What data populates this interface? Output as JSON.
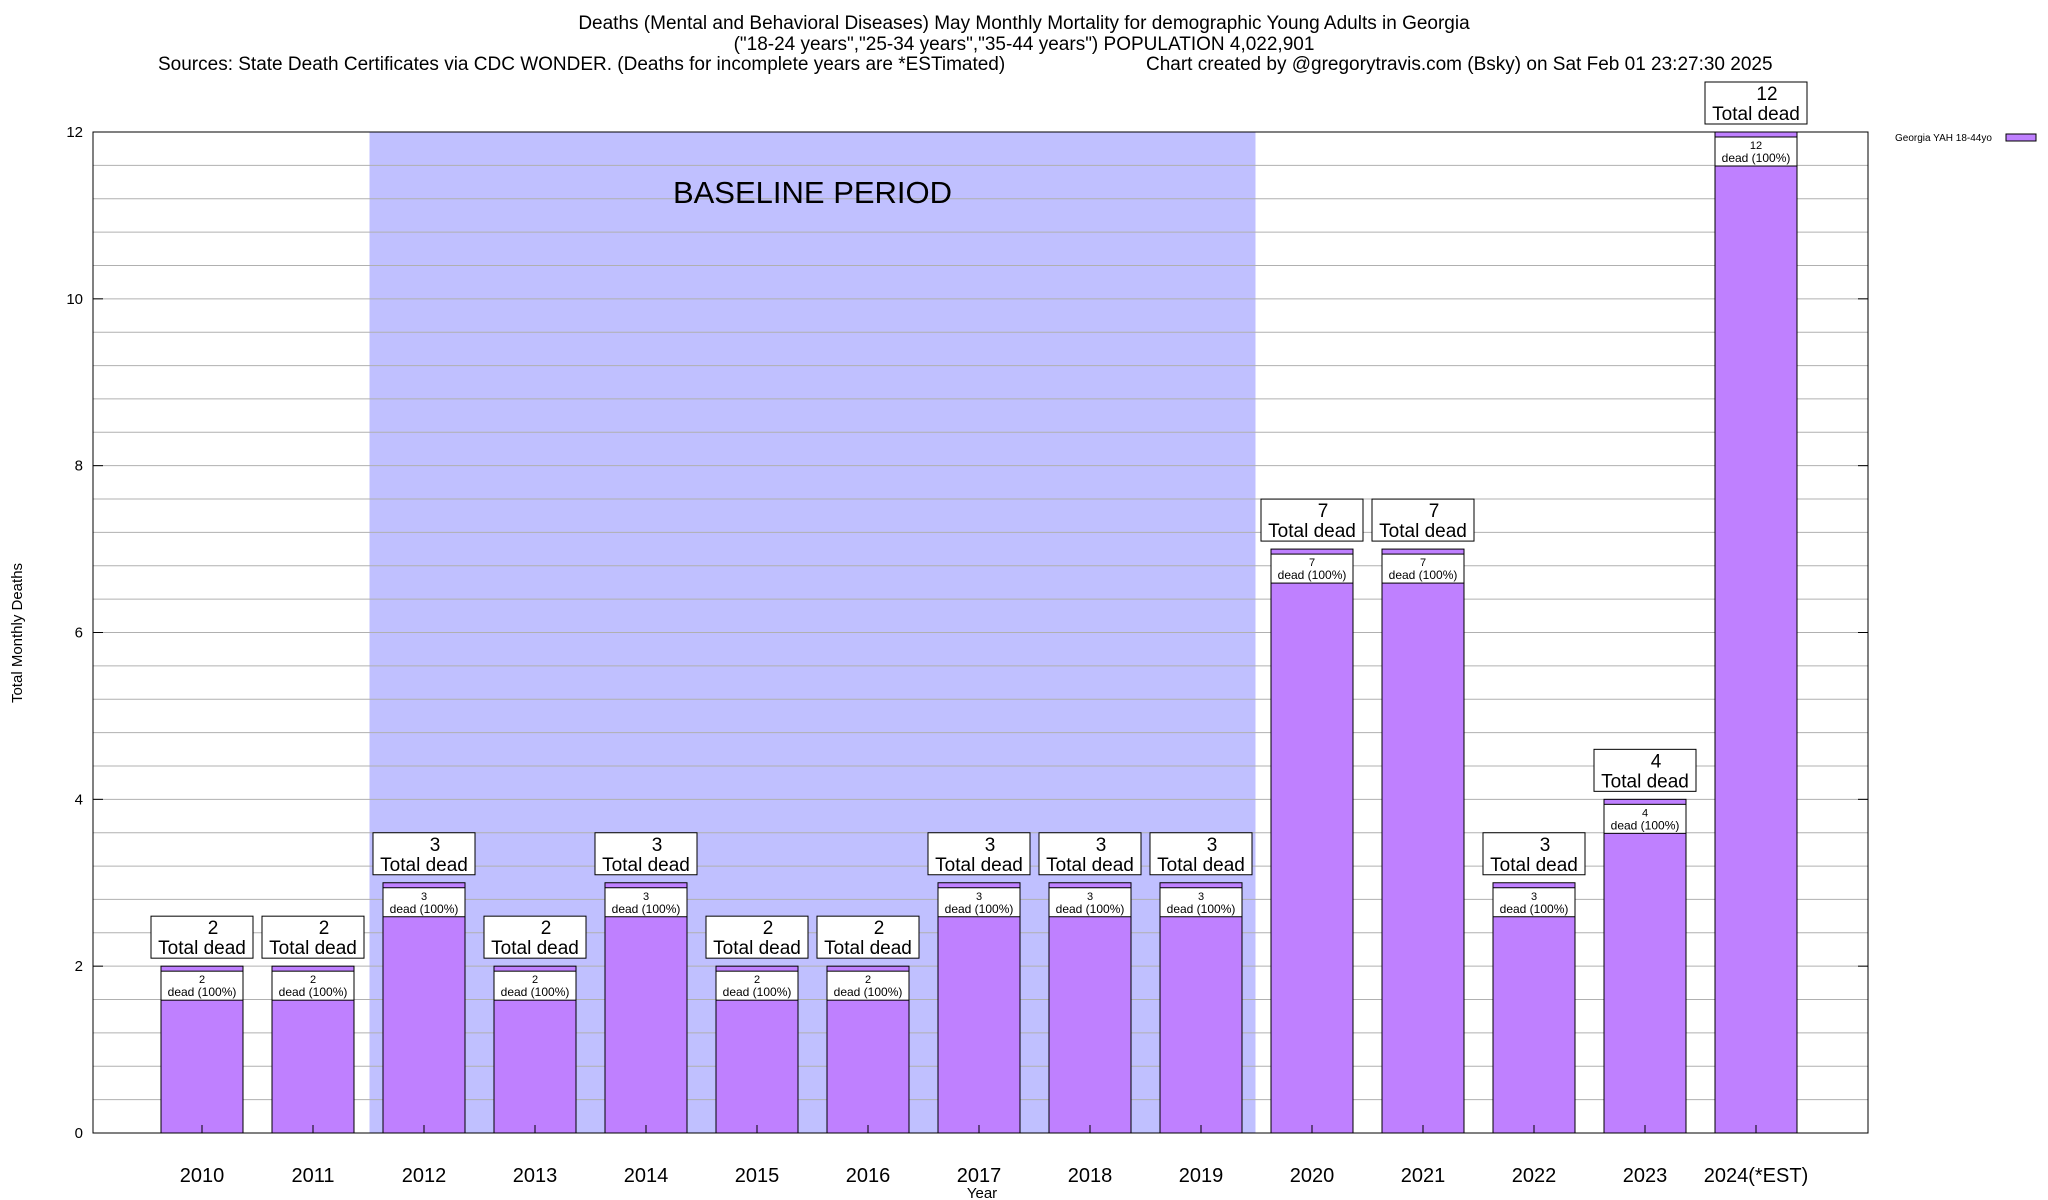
{
  "header": {
    "title_line1": "Deaths (Mental and Behavioral Diseases) May Monthly Mortality for demographic Young Adults in Georgia",
    "title_line2": "(\"18-24 years\",\"25-34 years\",\"35-44 years\") POPULATION 4,022,901",
    "sources": "Sources: State Death Certificates via CDC WONDER. (Deaths for incomplete years are *ESTimated)",
    "credit": "Chart created by @gregorytravis.com (Bsky) on Sat Feb 01 23:27:30 2025"
  },
  "chart_data": {
    "type": "bar",
    "title": "Deaths (Mental and Behavioral Diseases) May Monthly Mortality for demographic Young Adults in Georgia",
    "xlabel": "Year",
    "ylabel": "Total Monthly Deaths",
    "ylim": [
      0,
      12
    ],
    "yticks": [
      0,
      2,
      4,
      6,
      8,
      10,
      12
    ],
    "grid": true,
    "categories": [
      "2010",
      "2011",
      "2012",
      "2013",
      "2014",
      "2015",
      "2016",
      "2017",
      "2018",
      "2019",
      "2020",
      "2021",
      "2022",
      "2023",
      "2024(*EST)"
    ],
    "series": [
      {
        "name": "Georgia YAH 18-44yo",
        "color": "#bf80ff",
        "values": [
          2,
          2,
          3,
          2,
          3,
          2,
          2,
          3,
          3,
          3,
          7,
          7,
          3,
          4,
          12
        ]
      }
    ],
    "top_label_suffix": "Total dead",
    "inner_label_suffix": "dead (100%)",
    "shaded_region": {
      "label": "BASELINE PERIOD",
      "from": "2012",
      "to": "2019",
      "color": "#c0c0ff"
    },
    "legend_position": "top-right"
  }
}
